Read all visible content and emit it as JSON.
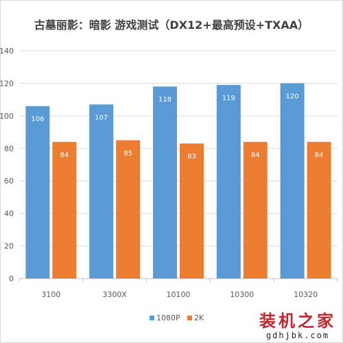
{
  "chart_data": {
    "type": "bar",
    "title": "古墓丽影：暗影 游戏测试（DX12+最高预设+TXAA）",
    "categories": [
      "3100",
      "3300X",
      "10100",
      "10300",
      "10320"
    ],
    "series": [
      {
        "name": "1080P",
        "values": [
          106,
          107,
          118,
          119,
          120
        ],
        "color": "#5b9bd5"
      },
      {
        "name": "2K",
        "values": [
          84,
          85,
          83,
          84,
          84
        ],
        "color": "#ed7d31"
      }
    ],
    "y_ticks": [
      "0",
      "20",
      "40",
      "60",
      "80",
      "100",
      "120",
      "140"
    ],
    "ylim": [
      0,
      140
    ],
    "grid": true,
    "legend_position": "bottom"
  },
  "watermark": {
    "main": "装机之家",
    "sub": "gdhjbk.com"
  }
}
